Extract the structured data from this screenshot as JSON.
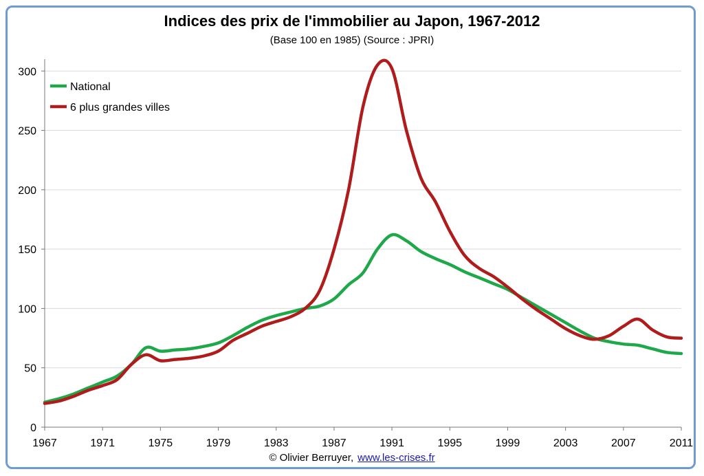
{
  "chart_data": {
    "type": "line",
    "title": "Indices des prix de l'immobilier au Japon, 1967-2012",
    "subtitle": "(Base 100 en 1985) (Source : JPRI)",
    "xlabel": "",
    "ylabel": "",
    "xlim": [
      1967,
      2011
    ],
    "ylim": [
      0,
      310
    ],
    "x_ticks": [
      "1967",
      "1971",
      "1975",
      "1979",
      "1983",
      "1987",
      "1991",
      "1995",
      "1999",
      "2003",
      "2007",
      "2011"
    ],
    "y_ticks": [
      "0",
      "50",
      "100",
      "150",
      "200",
      "250",
      "300"
    ],
    "grid": "horizontal",
    "legend_position": "top-left",
    "x": [
      1967,
      1968,
      1969,
      1970,
      1971,
      1972,
      1973,
      1974,
      1975,
      1976,
      1977,
      1978,
      1979,
      1980,
      1981,
      1982,
      1983,
      1984,
      1985,
      1986,
      1987,
      1988,
      1989,
      1990,
      1991,
      1992,
      1993,
      1994,
      1995,
      1996,
      1997,
      1998,
      1999,
      2000,
      2001,
      2002,
      2003,
      2004,
      2005,
      2006,
      2007,
      2008,
      2009,
      2010,
      2011
    ],
    "series": [
      {
        "name": "National",
        "color": "#1fa84a",
        "values": [
          21,
          24,
          28,
          33,
          38,
          43,
          53,
          67,
          64,
          65,
          66,
          68,
          71,
          77,
          84,
          90,
          94,
          97,
          100,
          102,
          108,
          120,
          130,
          150,
          162,
          157,
          148,
          142,
          137,
          131,
          126,
          121,
          116,
          109,
          102,
          95,
          88,
          81,
          75,
          72,
          70,
          69,
          66,
          63,
          62
        ]
      },
      {
        "name": "6 plus grandes villes",
        "color": "#b01c1c",
        "values": [
          20,
          22,
          26,
          31,
          35,
          40,
          53,
          61,
          56,
          57,
          58,
          60,
          64,
          73,
          79,
          85,
          89,
          93,
          100,
          115,
          150,
          200,
          270,
          305,
          302,
          250,
          210,
          190,
          165,
          145,
          134,
          127,
          118,
          108,
          99,
          91,
          83,
          77,
          74,
          77,
          85,
          91,
          82,
          76,
          75
        ]
      }
    ]
  },
  "footer": {
    "credit": "© Olivier Berruyer,",
    "link": "www.les-crises.fr"
  }
}
